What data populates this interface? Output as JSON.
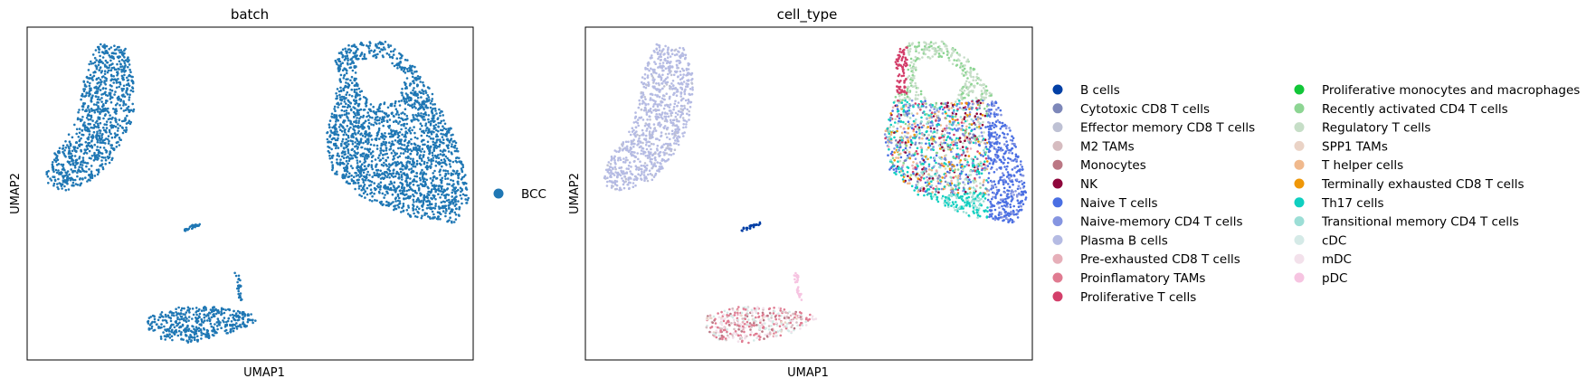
{
  "chart_data": [
    {
      "type": "scatter",
      "title": "batch",
      "xlabel": "UMAP1",
      "ylabel": "UMAP2",
      "xticks": [],
      "yticks": [],
      "legend": {
        "placement": "right",
        "entries": [
          {
            "name": "BCC",
            "color": "#1f77b4"
          }
        ]
      },
      "clusters": [
        {
          "name": "left-island",
          "color": "#1f77b4"
        },
        {
          "name": "right-island",
          "color": "#1f77b4"
        },
        {
          "name": "center-strand",
          "color": "#1f77b4"
        },
        {
          "name": "bottom-island",
          "color": "#1f77b4"
        }
      ]
    },
    {
      "type": "scatter",
      "title": "cell_type",
      "xlabel": "UMAP1",
      "ylabel": "UMAP2",
      "xticks": [],
      "yticks": [],
      "legend": {
        "placement": "right",
        "columns": 2,
        "entries": [
          {
            "name": "B cells",
            "color": "#023fa5"
          },
          {
            "name": "Cytotoxic CD8 T cells",
            "color": "#7d87b9"
          },
          {
            "name": "Effector memory CD8 T cells",
            "color": "#bec1d4"
          },
          {
            "name": "M2 TAMs",
            "color": "#d6bcc0"
          },
          {
            "name": "Monocytes",
            "color": "#bb7784"
          },
          {
            "name": "NK",
            "color": "#8e063b"
          },
          {
            "name": "Naive T cells",
            "color": "#4a6fe3"
          },
          {
            "name": "Naive-memory CD4 T cells",
            "color": "#8595e1"
          },
          {
            "name": "Plasma B cells",
            "color": "#b5bbe3"
          },
          {
            "name": "Pre-exhausted CD8 T cells",
            "color": "#e6afb9"
          },
          {
            "name": "Proinflamatory TAMs",
            "color": "#e07b91"
          },
          {
            "name": "Proliferative T cells",
            "color": "#d33f6a"
          },
          {
            "name": "Proliferative monocytes and macrophages",
            "color": "#11c638"
          },
          {
            "name": "Recently activated CD4 T cells",
            "color": "#8dd593"
          },
          {
            "name": "Regulatory T cells",
            "color": "#c6dec7"
          },
          {
            "name": "SPP1 TAMs",
            "color": "#ead3c6"
          },
          {
            "name": "T helper cells",
            "color": "#f0b98d"
          },
          {
            "name": "Terminally exhausted CD8 T cells",
            "color": "#ef9708"
          },
          {
            "name": "Th17 cells",
            "color": "#0fcfc0"
          },
          {
            "name": "Transitional memory CD4 T cells",
            "color": "#9cded6"
          },
          {
            "name": "cDC",
            "color": "#d5eae7"
          },
          {
            "name": "mDC",
            "color": "#f3e1eb"
          },
          {
            "name": "pDC",
            "color": "#f6c4e1"
          }
        ]
      }
    }
  ]
}
